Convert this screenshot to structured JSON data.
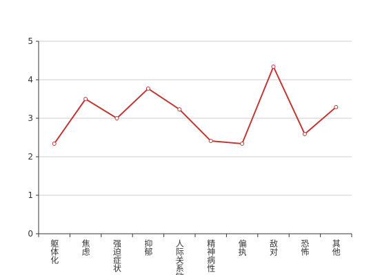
{
  "chart_data": {
    "type": "line",
    "categories": [
      "躯体化",
      "焦虑",
      "强迫症状",
      "抑郁",
      "人际关系敏感",
      "精神病性",
      "偏执",
      "敌对",
      "恐怖",
      "其他"
    ],
    "values": [
      2.34,
      3.5,
      3.0,
      3.77,
      3.23,
      2.41,
      2.34,
      4.34,
      2.59,
      3.29
    ],
    "color": "#c23531",
    "ylim": [
      0,
      5
    ],
    "yticks": [
      0,
      1,
      2,
      3,
      4,
      5
    ],
    "grid": true
  }
}
